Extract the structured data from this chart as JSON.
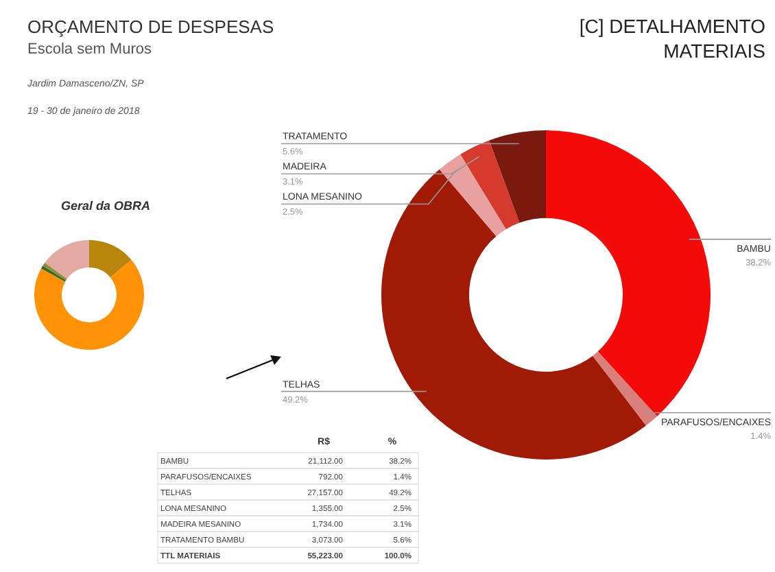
{
  "chart_data": [
    {
      "type": "other",
      "title": "ORÇAMENTO DE DESPESAS",
      "subtitle": "Escola sem Muros",
      "annotations": [
        "Jardim Damasceno/ZN, SP",
        "19 - 30 de janeiro de 2018"
      ]
    },
    {
      "type": "donut",
      "title": "Geral da OBRA",
      "categories": [
        null,
        null,
        null,
        null,
        null
      ],
      "values": [
        14,
        69,
        1,
        1,
        15
      ],
      "colors": [
        "#b8860b",
        "#ff9305",
        "#3a6b2a",
        "#8f8f3a",
        "#e2aaa2"
      ]
    },
    {
      "type": "donut",
      "title": "[C] DETALHAMENTO MATERIAIS",
      "categories": [
        "BAMBU",
        "PARAFUSOS/ENCAIXES",
        "TELHAS",
        "LONA MESANINO",
        "MADEIRA",
        "TRATAMENTO"
      ],
      "values": [
        38.2,
        1.4,
        49.2,
        2.5,
        3.1,
        5.6
      ],
      "value_labels": [
        "38.2%",
        "1.4%",
        "49.2%",
        "2.5%",
        "3.1%",
        "5.6%"
      ],
      "colors": [
        "#f50a0a",
        "#d9807a",
        "#a01a06",
        "#e8a0a0",
        "#d63a2c",
        "#7a1a0e"
      ]
    },
    {
      "type": "other",
      "categories": [
        "BAMBU",
        "PARAFUSOS/ENCAIXES",
        "TELHAS",
        "LONA MESANINO",
        "MADEIRA MESANINO",
        "TRATAMENTO BAMBU",
        "TTL MATERIAIS"
      ],
      "series": [
        {
          "name": "R$",
          "values": [
            21112,
            792,
            27157,
            1355,
            1734,
            3073,
            55223
          ],
          "value_labels": [
            "21,112.00",
            "792.00",
            "27,157.00",
            "1,355.00",
            "1,734.00",
            "3,073.00",
            "55,223.00"
          ]
        },
        {
          "name": "%",
          "values": [
            38.2,
            1.4,
            49.2,
            2.5,
            3.1,
            5.6,
            100
          ],
          "value_labels": [
            "38.2%",
            "1.4%",
            "49.2%",
            "2.5%",
            "3.1%",
            "5.6%",
            "100.0%"
          ]
        }
      ]
    }
  ]
}
